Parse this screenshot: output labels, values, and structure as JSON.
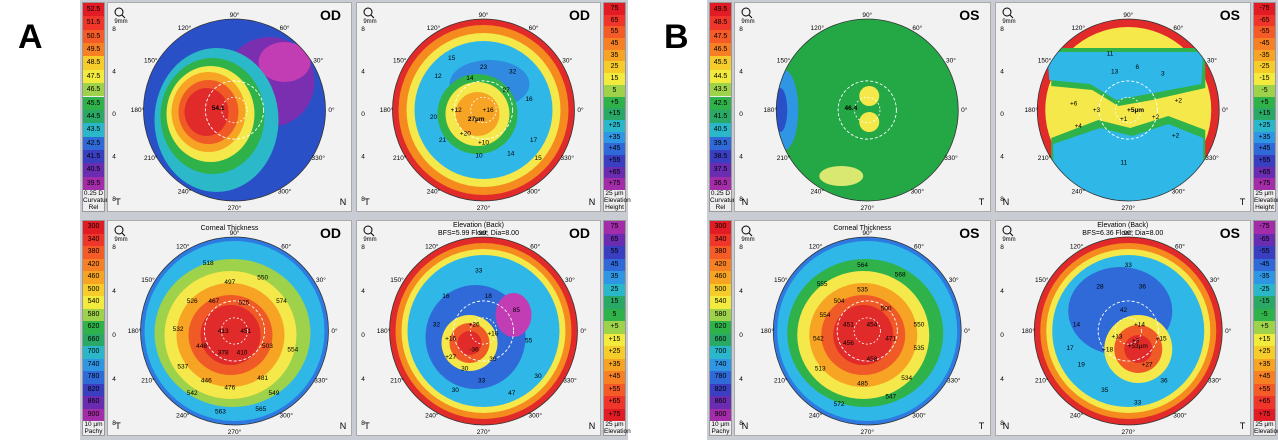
{
  "labels": {
    "a": "A",
    "b": "B"
  },
  "figures": [
    {
      "key": "A",
      "eye": "OD",
      "curvature_scale": [
        "52.5",
        "51.5",
        "50.5",
        "49.5",
        "48.5",
        "47.5",
        "46.5",
        "45.5",
        "44.5",
        "43.5",
        "42.5",
        "41.5",
        "40.5",
        "39.5"
      ],
      "curvature_caption": [
        "0.25 D",
        "Curvature",
        "Rel"
      ],
      "elevation_scale": [
        "75",
        "65",
        "55",
        "45",
        "35",
        "25",
        "15",
        "5",
        "+5",
        "+15",
        "+25",
        "+35",
        "+45",
        "+55",
        "+65",
        "+75"
      ],
      "elevation_caption": [
        "25 µm",
        "Elevation",
        "Height"
      ],
      "pachy_scale": [
        "300",
        "340",
        "380",
        "420",
        "460",
        "500",
        "540",
        "580",
        "620",
        "660",
        "700",
        "740",
        "780",
        "820",
        "860",
        "900"
      ],
      "pachy_caption": [
        "10 µm",
        "Pachy"
      ],
      "back_scale": [
        "75",
        "65",
        "55",
        "45",
        "35",
        "25",
        "15",
        "5",
        "+5",
        "+15",
        "+25",
        "+35",
        "+45",
        "+55",
        "+65",
        "+75"
      ],
      "back_caption": [
        "25 µm",
        "Elevation"
      ],
      "topleft_values": {
        "center": "54.1"
      },
      "topright_values": {
        "v1": "15",
        "v2": "23",
        "v3": "32",
        "v4": "12",
        "v5": "14",
        "v6": "27",
        "v7": "20",
        "v8": "16",
        "v9": "10",
        "v10": "14",
        "v11": "17",
        "v12": "+12",
        "v13": "+16",
        "v14": "+20",
        "v15": "+10",
        "v16": "21",
        "v17": "15",
        "center": "27µm"
      },
      "thickness_title": "Corneal Thickness",
      "thickness_values": {
        "a": "518",
        "b": "497",
        "c": "550",
        "d": "526",
        "e": "467",
        "f": "525",
        "g": "574",
        "h": "532",
        "i": "413",
        "j": "451",
        "k": "448",
        "l": "378",
        "m": "410",
        "n": "503",
        "o": "554",
        "p": "537",
        "q": "446",
        "r": "481",
        "s": "542",
        "t": "476",
        "u": "549",
        "v": "563",
        "w": "565"
      },
      "back_title": [
        "Elevation (Back)",
        "BFS=5.99 Float, Dia=8.00"
      ],
      "back_values": {
        "a": "33",
        "b": "16",
        "c": "18",
        "d": "85",
        "e": "32",
        "f": "+26",
        "g": "+16",
        "h": "+16",
        "i": "30",
        "j": "55",
        "k": "36",
        "l": "+27",
        "m": "33",
        "n": "30",
        "o": "47",
        "p": "30",
        "q": "-36"
      },
      "ticks": {
        "t90": "90°",
        "t60": "60°",
        "t120": "120°",
        "t150": "150°",
        "t30": "30°",
        "t0": "0°",
        "t180": "180°",
        "t210": "210°",
        "t330": "330°",
        "t240": "240°",
        "t300": "300°",
        "t270": "270°",
        "nT": "T",
        "nN": "N",
        "mm": "9mm"
      },
      "axis_nums": [
        "8",
        "4",
        "0",
        "4",
        "8"
      ]
    },
    {
      "key": "B",
      "eye": "OS",
      "curvature_scale": [
        "49.5",
        "48.5",
        "47.5",
        "46.5",
        "45.5",
        "44.5",
        "43.5",
        "42.5",
        "41.5",
        "40.5",
        "39.5",
        "38.5",
        "37.5",
        "36.5"
      ],
      "curvature_caption": [
        "0.25 D",
        "Curvature",
        "Rel"
      ],
      "elevation_scale": [
        "-75",
        "-65",
        "-55",
        "-45",
        "-35",
        "-25",
        "-15",
        "-5",
        "+5",
        "+15",
        "+25",
        "+35",
        "+45",
        "+55",
        "+65",
        "+75"
      ],
      "elevation_caption": [
        "25 µm",
        "Elevation",
        "Height"
      ],
      "pachy_scale": [
        "300",
        "340",
        "380",
        "420",
        "460",
        "500",
        "540",
        "580",
        "620",
        "660",
        "700",
        "740",
        "780",
        "820",
        "860",
        "900"
      ],
      "pachy_caption": [
        "10 µm",
        "Pachy"
      ],
      "back_scale": [
        "-75",
        "-65",
        "-55",
        "-45",
        "-35",
        "-25",
        "-15",
        "-5",
        "+5",
        "+15",
        "+25",
        "+35",
        "+45",
        "+55",
        "+65",
        "+75"
      ],
      "back_caption": [
        "25 µm",
        "Elevation"
      ],
      "topleft_values": {
        "center": "46.4"
      },
      "topright_values": {
        "v1": "11",
        "v2": "6",
        "v3": "3",
        "v4": "13",
        "v5": "+6",
        "v6": "+3",
        "v7": "+2",
        "v8": "+4",
        "v9": "+1",
        "v10": "+2",
        "v11": "+2",
        "v12": "11",
        "center": "+5µm"
      },
      "thickness_title": "Corneal Thickness",
      "thickness_values": {
        "a": "555",
        "b": "564",
        "c": "568",
        "d": "535",
        "e": "504",
        "f": "554",
        "g": "500",
        "h": "550",
        "i": "451",
        "j": "454",
        "k": "542",
        "l": "456",
        "m": "471",
        "n": "535",
        "o": "513",
        "p": "458",
        "q": "534",
        "r": "485",
        "s": "547",
        "t": "572"
      },
      "back_title": [
        "Elevation (Back)",
        "BFS=6.36 Float, Dia=8.00"
      ],
      "back_values": {
        "a": "33",
        "b": "28",
        "c": "36",
        "d": "42",
        "e": "14",
        "f": "17",
        "g": "+14",
        "h": "+13",
        "i": "+3",
        "j": "+18",
        "k": "+15",
        "l": "19",
        "m": "+27",
        "n": "35",
        "o": "36",
        "p": "33",
        "center": "+53µm"
      },
      "ticks": {
        "t90": "90°",
        "t60": "60°",
        "t120": "120°",
        "t150": "150°",
        "t30": "30°",
        "t0": "0°",
        "t180": "180°",
        "t210": "210°",
        "t330": "330°",
        "t240": "240°",
        "t300": "300°",
        "t270": "270°",
        "nT": "T",
        "nN": "N",
        "mm": "9mm"
      },
      "axis_nums": [
        "8",
        "4",
        "0",
        "4",
        "8"
      ]
    }
  ],
  "colors": {
    "red": "#e8282a",
    "orange": "#f58a1e",
    "yellow": "#f4e84a",
    "green": "#28b24a",
    "cyan": "#2fb7e8",
    "blue": "#2c55c8",
    "purple": "#8a2aa8",
    "magenta": "#c43bb7"
  }
}
